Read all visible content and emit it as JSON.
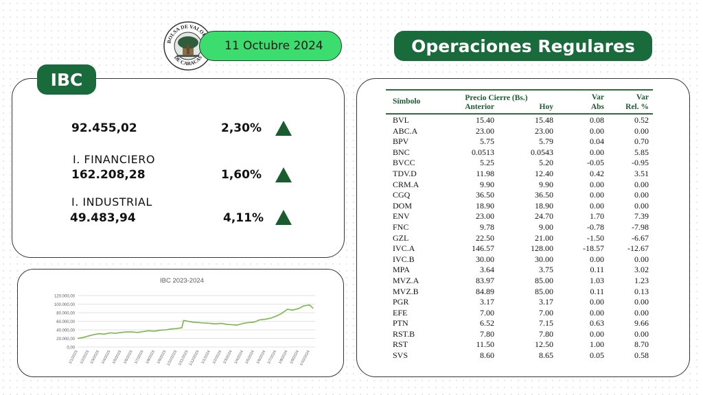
{
  "header": {
    "date": "11 Octubre 2024",
    "ops_title": "Operaciones Regulares",
    "ibc_title": "IBC",
    "logo_text_top": "BOLSA DE VALORES",
    "logo_text_bottom": "DE CARACAS"
  },
  "ibc": {
    "rows": [
      {
        "label": "",
        "value": "92.455,02",
        "change": "2,30%",
        "trend": "up"
      },
      {
        "label": "I. FINANCIERO",
        "value": "162.208,28",
        "change": "1,60%",
        "trend": "up"
      },
      {
        "label": "I. INDUSTRIAL",
        "value": "49.483,94",
        "change": "4,11%",
        "trend": "up"
      }
    ],
    "colors": {
      "up_triangle": "#1a5c30",
      "accent": "#1a6b3c",
      "date_pill": "#3ddc6e"
    }
  },
  "table": {
    "headers": {
      "symbol": "Símbolo",
      "price_group": "Precio Cierre (Bs.)",
      "prev": "Anterior",
      "today": "Hoy",
      "var_abs_1": "Var",
      "var_abs_2": "Abs",
      "var_rel_1": "Var",
      "var_rel_2": "Rel. %"
    },
    "rows": [
      [
        "BVL",
        "15.40",
        "15.48",
        "0.08",
        "0.52"
      ],
      [
        "ABC.A",
        "23.00",
        "23.00",
        "0.00",
        "0.00"
      ],
      [
        "BPV",
        "5.75",
        "5.79",
        "0.04",
        "0.70"
      ],
      [
        "BNC",
        "0.0513",
        "0.0543",
        "0.00",
        "5.85"
      ],
      [
        "BVCC",
        "5.25",
        "5.20",
        "-0.05",
        "-0.95"
      ],
      [
        "TDV.D",
        "11.98",
        "12.40",
        "0.42",
        "3.51"
      ],
      [
        "CRM.A",
        "9.90",
        "9.90",
        "0.00",
        "0.00"
      ],
      [
        "CGQ",
        "36.50",
        "36.50",
        "0.00",
        "0.00"
      ],
      [
        "DOM",
        "18.90",
        "18.90",
        "0.00",
        "0.00"
      ],
      [
        "ENV",
        "23.00",
        "24.70",
        "1.70",
        "7.39"
      ],
      [
        "FNC",
        "9.78",
        "9.00",
        "-0.78",
        "-7.98"
      ],
      [
        "GZL",
        "22.50",
        "21.00",
        "-1.50",
        "-6.67"
      ],
      [
        "IVC.A",
        "146.57",
        "128.00",
        "-18.57",
        "-12.67"
      ],
      [
        "IVC.B",
        "30.00",
        "30.00",
        "0.00",
        "0.00"
      ],
      [
        "MPA",
        "3.64",
        "3.75",
        "0.11",
        "3.02"
      ],
      [
        "MVZ.A",
        "83.97",
        "85.00",
        "1.03",
        "1.23"
      ],
      [
        "MVZ.B",
        "84.89",
        "85.00",
        "0.11",
        "0.13"
      ],
      [
        "PGR",
        "3.17",
        "3.17",
        "0.00",
        "0.00"
      ],
      [
        "EFE",
        "7.00",
        "7.00",
        "0.00",
        "0.00"
      ],
      [
        "PTN",
        "6.52",
        "7.15",
        "0.63",
        "9.66"
      ],
      [
        "RST.B",
        "7.80",
        "7.80",
        "0.00",
        "0.00"
      ],
      [
        "RST",
        "11.50",
        "12.50",
        "1.00",
        "8.70"
      ],
      [
        "SVS",
        "8.60",
        "8.65",
        "0.05",
        "0.58"
      ]
    ]
  },
  "chart_data": {
    "type": "line",
    "title": "IBC 2023-2024",
    "ylim": [
      0,
      120000
    ],
    "y_ticks": [
      0,
      20000,
      40000,
      60000,
      80000,
      100000,
      120000
    ],
    "y_tick_labels": [
      "0,00",
      "20.000,00",
      "40.000,00",
      "60.000,00",
      "80.000,00",
      "100.000,00",
      "120.000,00"
    ],
    "x_tick_labels": [
      "1/1/2023",
      "1/2/2023",
      "1/3/2023",
      "1/4/2023",
      "1/5/2023",
      "1/6/2023",
      "1/7/2023",
      "1/8/2023",
      "1/9/2023",
      "1/10/2023",
      "1/11/2023",
      "1/12/2023",
      "1/1/2024",
      "1/2/2024",
      "1/3/2024",
      "1/4/2024",
      "1/5/2024",
      "1/6/2024",
      "1/7/2024",
      "1/8/2024",
      "1/9/2024",
      "1/10/2024"
    ],
    "line_color": "#7ab648",
    "grid": true,
    "series": [
      {
        "x": [
          "1/1/2023",
          "15/1/2023",
          "1/2/2023",
          "15/2/2023",
          "1/3/2023",
          "15/3/2023",
          "1/4/2023",
          "15/4/2023",
          "1/5/2023",
          "15/5/2023",
          "1/6/2023",
          "15/6/2023",
          "1/7/2023",
          "15/7/2023",
          "1/8/2023",
          "15/8/2023",
          "1/9/2023",
          "15/9/2023",
          "1/10/2023",
          "15/10/2023",
          "20/10/2023",
          "1/11/2023",
          "15/11/2023",
          "1/12/2023",
          "15/12/2023",
          "1/1/2024",
          "15/1/2024",
          "1/2/2024",
          "15/2/2024",
          "1/3/2024",
          "15/3/2024",
          "1/4/2024",
          "15/4/2024",
          "1/5/2024",
          "15/5/2024",
          "1/6/2024",
          "15/6/2024",
          "1/7/2024",
          "15/7/2024",
          "1/8/2024",
          "15/8/2024",
          "1/9/2024",
          "15/9/2024",
          "1/10/2024",
          "11/10/2024"
        ],
        "values": [
          20000,
          22000,
          26000,
          29000,
          31000,
          30000,
          33000,
          32000,
          34000,
          35000,
          35000,
          34000,
          36000,
          38000,
          37000,
          39000,
          40000,
          42000,
          43000,
          45000,
          62000,
          60000,
          58000,
          57000,
          56000,
          55000,
          54000,
          55000,
          53000,
          52000,
          51000,
          55000,
          57000,
          58000,
          63000,
          65000,
          67000,
          72000,
          78000,
          88000,
          86000,
          90000,
          96000,
          98000,
          90000
        ]
      }
    ]
  }
}
